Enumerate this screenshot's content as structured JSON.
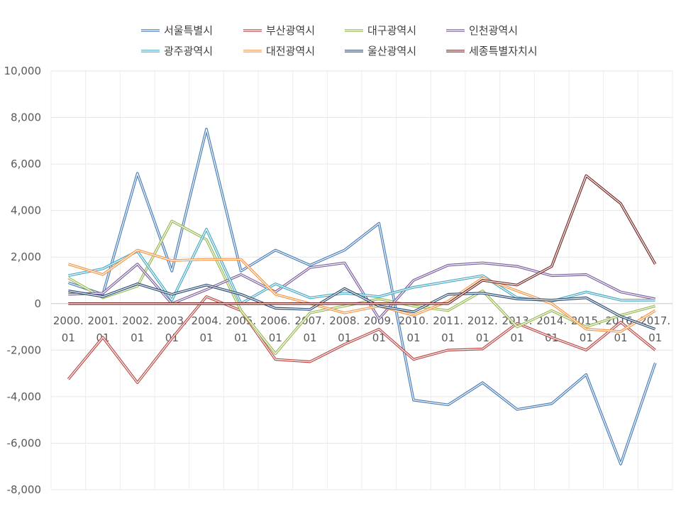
{
  "chart_data": {
    "type": "line",
    "title": "",
    "xlabel": "",
    "ylabel": "",
    "ylim": [
      -8000,
      10000
    ],
    "ystep": 2000,
    "grid": true,
    "legend_position": "top",
    "categories": [
      [
        "2000.",
        "01"
      ],
      [
        "2001.",
        "01"
      ],
      [
        "2002.",
        "01"
      ],
      [
        "2003.",
        "01"
      ],
      [
        "2004.",
        "01"
      ],
      [
        "2005.",
        "01"
      ],
      [
        "2006.",
        "01"
      ],
      [
        "2007.",
        "01"
      ],
      [
        "2008.",
        "01"
      ],
      [
        "2009.",
        "01"
      ],
      [
        "2010.",
        "01"
      ],
      [
        "2011.",
        "01"
      ],
      [
        "2012.",
        "01"
      ],
      [
        "2013.",
        "01"
      ],
      [
        "2014.",
        "01"
      ],
      [
        "2015.",
        "01"
      ],
      [
        "2016.",
        "01"
      ],
      [
        "2017.",
        "01"
      ]
    ],
    "y_tick_labels": [
      "-8,000",
      "-6,000",
      "-4,000",
      "-2,000",
      "0",
      "2,000",
      "4,000",
      "6,000",
      "8,000",
      "10,000"
    ],
    "series": [
      {
        "name": "서울특별시",
        "color": "#4a7ebb",
        "values": [
          900,
          400,
          5600,
          1400,
          7500,
          1400,
          2300,
          1650,
          2300,
          3450,
          -4150,
          -4350,
          -3400,
          -4550,
          -4300,
          -3050,
          -6900,
          -2550
        ]
      },
      {
        "name": "부산광역시",
        "color": "#be4b48",
        "values": [
          -3250,
          -1450,
          -3400,
          -1500,
          300,
          -300,
          -2400,
          -2500,
          -1750,
          -1100,
          -2400,
          -2000,
          -1950,
          -850,
          -1450,
          -2000,
          -800,
          -2000
        ]
      },
      {
        "name": "대구광역시",
        "color": "#98b954",
        "values": [
          1100,
          250,
          750,
          3550,
          2750,
          -300,
          -2150,
          -400,
          -100,
          200,
          -100,
          -300,
          550,
          -1000,
          -300,
          -1000,
          -500,
          -100
        ]
      },
      {
        "name": "인천광역시",
        "color": "#7d60a0",
        "values": [
          400,
          450,
          1700,
          0,
          600,
          1250,
          500,
          1550,
          1750,
          -650,
          1000,
          1650,
          1750,
          1600,
          1200,
          1250,
          500,
          200
        ]
      },
      {
        "name": "광주광역시",
        "color": "#46aac5",
        "values": [
          1200,
          1500,
          2250,
          150,
          3200,
          0,
          850,
          250,
          450,
          300,
          700,
          950,
          1200,
          250,
          100,
          500,
          150,
          150
        ]
      },
      {
        "name": "대전광역시",
        "color": "#f79646",
        "values": [
          1700,
          1250,
          2300,
          1850,
          1900,
          1900,
          400,
          0,
          -400,
          -100,
          -500,
          100,
          1100,
          550,
          0,
          -1100,
          -1200,
          -300
        ]
      },
      {
        "name": "울산광역시",
        "color": "#2c4d75",
        "values": [
          550,
          300,
          850,
          400,
          800,
          400,
          -200,
          -250,
          650,
          -100,
          -350,
          400,
          450,
          200,
          150,
          250,
          -550,
          -1100
        ]
      },
      {
        "name": "세종특별자치시",
        "color": "#772c2a",
        "values": [
          0,
          0,
          0,
          0,
          0,
          0,
          0,
          0,
          0,
          0,
          0,
          0,
          1000,
          800,
          1600,
          5500,
          4300,
          1700
        ]
      }
    ]
  }
}
